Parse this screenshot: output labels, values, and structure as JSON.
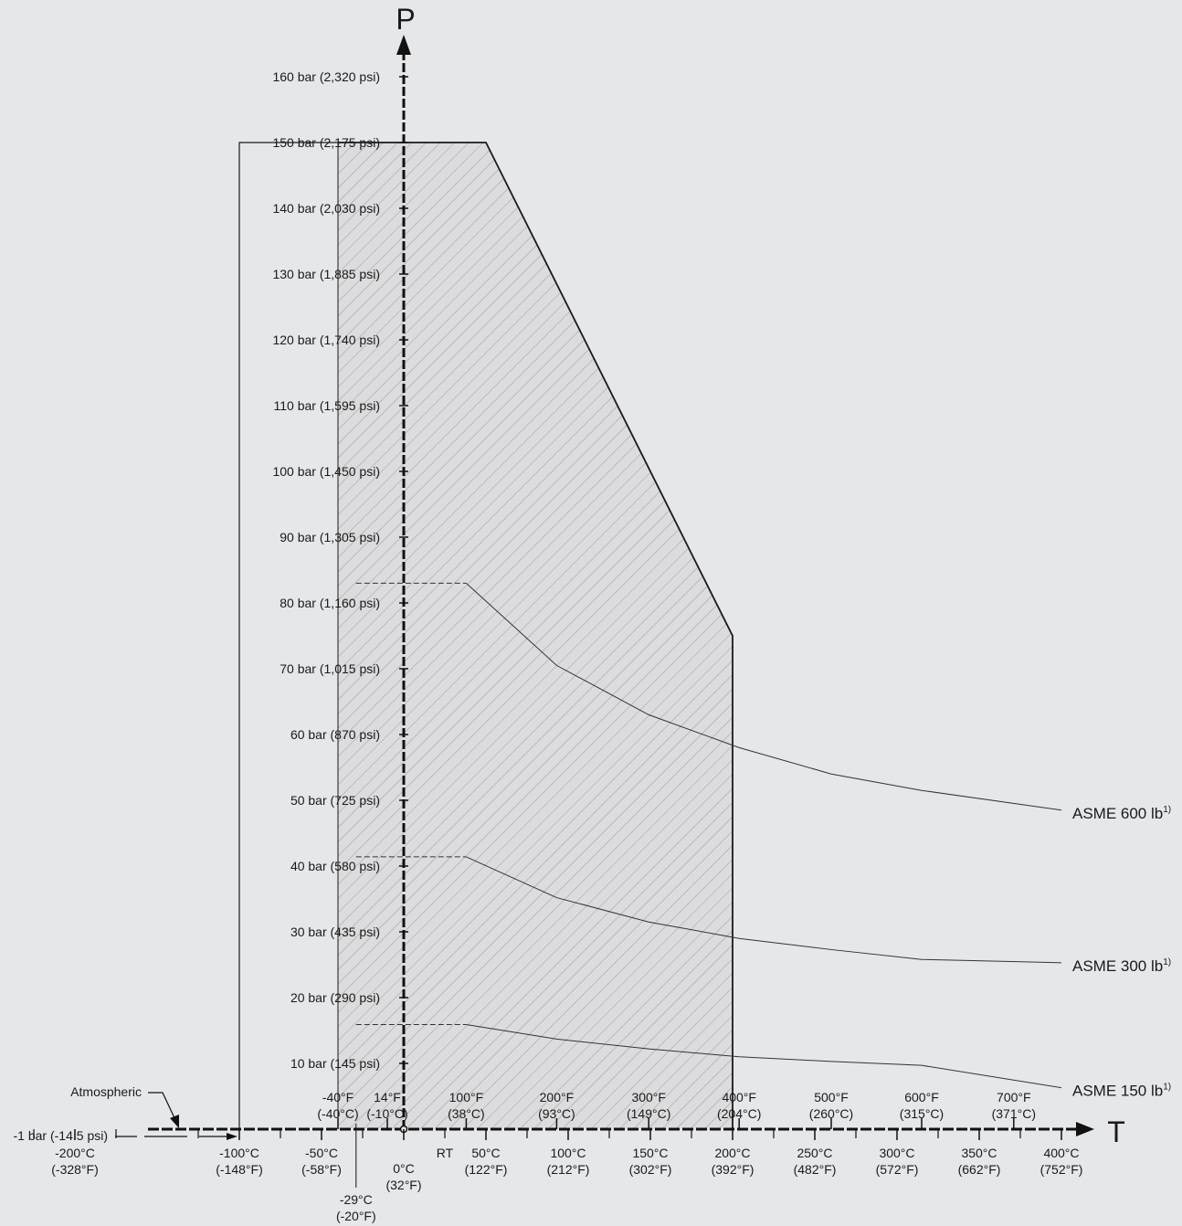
{
  "chart_data": {
    "type": "line",
    "y_axis": {
      "title": "P",
      "ticks": [
        {
          "value": 10,
          "label": "10 bar (145 psi)"
        },
        {
          "value": 20,
          "label": "20 bar (290 psi)"
        },
        {
          "value": 30,
          "label": "30 bar (435 psi)"
        },
        {
          "value": 40,
          "label": "40 bar (580 psi)"
        },
        {
          "value": 50,
          "label": "50 bar (725 psi)"
        },
        {
          "value": 60,
          "label": "60 bar (870 psi)"
        },
        {
          "value": 70,
          "label": "70 bar (1,015 psi)"
        },
        {
          "value": 80,
          "label": "80 bar (1,160 psi)"
        },
        {
          "value": 90,
          "label": "90 bar (1,305 psi)"
        },
        {
          "value": 100,
          "label": "100 bar (1,450 psi)"
        },
        {
          "value": 110,
          "label": "110 bar (1,595 psi)"
        },
        {
          "value": 120,
          "label": "120 bar (1,740 psi)"
        },
        {
          "value": 130,
          "label": "130 bar (1,885 psi)"
        },
        {
          "value": 140,
          "label": "140 bar (2,030 psi)"
        },
        {
          "value": 150,
          "label": "150 bar (2,175 psi)"
        },
        {
          "value": 160,
          "label": "160 bar (2,320 psi)"
        }
      ],
      "ylim": [
        0,
        170
      ]
    },
    "x_axis": {
      "title": "T",
      "celsius_ticks": [
        {
          "value": -200,
          "lines": [
            "-200°C",
            "(-328°F)"
          ]
        },
        {
          "value": -100,
          "lines": [
            "-100°C",
            "(-148°F)"
          ]
        },
        {
          "value": -50,
          "lines": [
            "-50°C",
            "(-58°F)"
          ]
        },
        {
          "value": 0,
          "lines": [
            "0°C",
            "(32°F)"
          ]
        },
        {
          "value": 50,
          "lines": [
            "50°C",
            "(122°F)"
          ]
        },
        {
          "value": 100,
          "lines": [
            "100°C",
            "(212°F)"
          ]
        },
        {
          "value": 150,
          "lines": [
            "150°C",
            "(302°F)"
          ]
        },
        {
          "value": 200,
          "lines": [
            "200°C",
            "(392°F)"
          ]
        },
        {
          "value": 250,
          "lines": [
            "250°C",
            "(482°F)"
          ]
        },
        {
          "value": 300,
          "lines": [
            "300°C",
            "(572°F)"
          ]
        },
        {
          "value": 350,
          "lines": [
            "350°C",
            "(662°F)"
          ]
        },
        {
          "value": 400,
          "lines": [
            "400°C",
            "(752°F)"
          ]
        }
      ],
      "fahrenheit_ticks": [
        {
          "value": -40,
          "lines": [
            "-40°F",
            "(-40°C)"
          ]
        },
        {
          "value": -10,
          "lines": [
            "14°F",
            "(-10°C)"
          ]
        },
        {
          "value": 38,
          "lines": [
            "100°F",
            "(38°C)"
          ]
        },
        {
          "value": 93,
          "lines": [
            "200°F",
            "(93°C)"
          ]
        },
        {
          "value": 149,
          "lines": [
            "300°F",
            "(149°C)"
          ]
        },
        {
          "value": 204,
          "lines": [
            "400°F",
            "(204°C)"
          ]
        },
        {
          "value": 260,
          "lines": [
            "500°F",
            "(260°C)"
          ]
        },
        {
          "value": 315,
          "lines": [
            "600°F",
            "(315°C)"
          ]
        },
        {
          "value": 371,
          "lines": [
            "700°F",
            "(371°C)"
          ]
        }
      ],
      "extra_ticks": [
        {
          "value": -29,
          "lines": [
            "-29°C",
            "(-20°F)"
          ]
        },
        {
          "value": 25,
          "lines": [
            "RT"
          ]
        }
      ],
      "xlim": [
        -240,
        415
      ]
    },
    "atmospheric_label": "Atmospheric",
    "vacuum_label": "-1 bar (-14.5 psi)",
    "envelopes": [
      {
        "id": "outer",
        "points": [
          [
            -100,
            -1
          ],
          [
            -100,
            150
          ],
          [
            -40,
            150
          ]
        ]
      },
      {
        "id": "hatched",
        "points": [
          [
            -40,
            -1
          ],
          [
            -40,
            150
          ],
          [
            50,
            150
          ],
          [
            200,
            75
          ],
          [
            200,
            -1
          ]
        ]
      }
    ],
    "series": [
      {
        "name": "ASME 600 lb",
        "sup": "1)",
        "dashed": [
          [
            -29,
            83
          ],
          [
            38,
            83
          ]
        ],
        "values": [
          [
            38,
            83
          ],
          [
            93,
            70.5
          ],
          [
            149,
            63
          ],
          [
            204,
            58
          ],
          [
            260,
            54
          ],
          [
            315,
            51.5
          ],
          [
            400,
            48.5
          ]
        ]
      },
      {
        "name": "ASME 300 lb",
        "sup": "1)",
        "dashed": [
          [
            -29,
            41.4
          ],
          [
            38,
            41.4
          ]
        ],
        "values": [
          [
            38,
            41.4
          ],
          [
            93,
            35.2
          ],
          [
            149,
            31.5
          ],
          [
            204,
            29
          ],
          [
            260,
            27.3
          ],
          [
            315,
            25.8
          ],
          [
            400,
            25.3
          ]
        ]
      },
      {
        "name": "ASME 150 lb",
        "sup": "1)",
        "dashed": [
          [
            -29,
            15.9
          ],
          [
            38,
            15.9
          ]
        ],
        "values": [
          [
            38,
            15.9
          ],
          [
            93,
            13.7
          ],
          [
            149,
            12.2
          ],
          [
            204,
            11
          ],
          [
            260,
            10.3
          ],
          [
            315,
            9.7
          ],
          [
            400,
            6.3
          ]
        ]
      }
    ]
  }
}
